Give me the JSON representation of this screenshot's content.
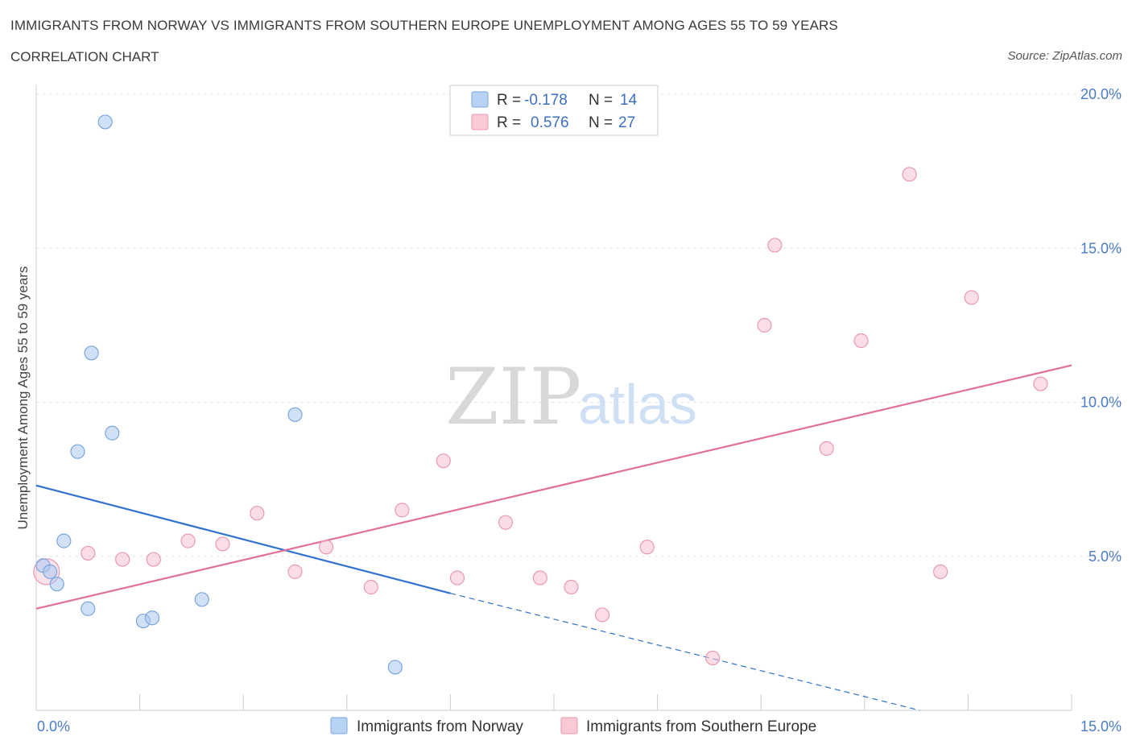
{
  "chart_data": {
    "type": "scatter",
    "title": "IMMIGRANTS FROM NORWAY VS IMMIGRANTS FROM SOUTHERN EUROPE UNEMPLOYMENT AMONG AGES 55 TO 59 YEARS",
    "subtitle": "CORRELATION CHART",
    "source": "Source: ZipAtlas.com",
    "ylabel": "Unemployment Among Ages 55 to 59 years",
    "xlim": [
      0,
      15
    ],
    "ylim": [
      0,
      20
    ],
    "x_tick_labels": [
      "0.0%",
      "15.0%"
    ],
    "y_ticks": [
      5,
      10,
      15,
      20
    ],
    "y_tick_labels": [
      "5.0%",
      "10.0%",
      "15.0%",
      "20.0%"
    ],
    "watermark": {
      "zip": "ZIP",
      "atlas": "atlas"
    },
    "legend": {
      "r_label": "R =",
      "n_label": "N =",
      "entries": [
        {
          "r": "-0.178",
          "n": "14"
        },
        {
          "r": "0.576",
          "n": "27"
        }
      ]
    },
    "series": [
      {
        "name": "Immigrants from Norway",
        "color": "#a9c8f0",
        "stroke": "#7aa6dd",
        "line_color": "#2f72cf",
        "points": [
          [
            0.1,
            4.7
          ],
          [
            0.2,
            4.5
          ],
          [
            0.3,
            4.1
          ],
          [
            0.4,
            5.5
          ],
          [
            0.6,
            8.4
          ],
          [
            0.75,
            3.3
          ],
          [
            0.8,
            11.6
          ],
          [
            1.0,
            19.1
          ],
          [
            1.1,
            9.0
          ],
          [
            1.55,
            2.9
          ],
          [
            1.68,
            3.0
          ],
          [
            2.4,
            3.6
          ],
          [
            3.75,
            9.6
          ],
          [
            5.2,
            1.4
          ]
        ],
        "trend": {
          "x0": 0,
          "y0": 7.3,
          "x1": 6.0,
          "y1": 3.8,
          "dash_x1": 12.8,
          "dash_y1": 0.0
        }
      },
      {
        "name": "Immigrants from Southern Europe",
        "color": "#f7c1d0",
        "stroke": "#e899b1",
        "line_color": "#e0709a",
        "points": [
          [
            0.15,
            4.5
          ],
          [
            0.75,
            5.1
          ],
          [
            1.25,
            4.9
          ],
          [
            1.7,
            4.9
          ],
          [
            2.2,
            5.5
          ],
          [
            2.7,
            5.4
          ],
          [
            3.2,
            6.4
          ],
          [
            3.75,
            4.5
          ],
          [
            4.2,
            5.3
          ],
          [
            4.85,
            4.0
          ],
          [
            5.3,
            6.5
          ],
          [
            5.9,
            8.1
          ],
          [
            6.1,
            4.3
          ],
          [
            6.8,
            6.1
          ],
          [
            7.3,
            4.3
          ],
          [
            7.75,
            4.0
          ],
          [
            8.2,
            3.1
          ],
          [
            8.85,
            5.3
          ],
          [
            9.8,
            1.7
          ],
          [
            10.55,
            12.5
          ],
          [
            10.7,
            15.1
          ],
          [
            11.45,
            8.5
          ],
          [
            11.95,
            12.0
          ],
          [
            12.65,
            17.4
          ],
          [
            13.1,
            4.5
          ],
          [
            13.55,
            13.4
          ],
          [
            14.55,
            10.6
          ]
        ],
        "trend": {
          "x0": 0,
          "y0": 3.3,
          "x1": 15,
          "y1": 11.2
        }
      }
    ]
  }
}
